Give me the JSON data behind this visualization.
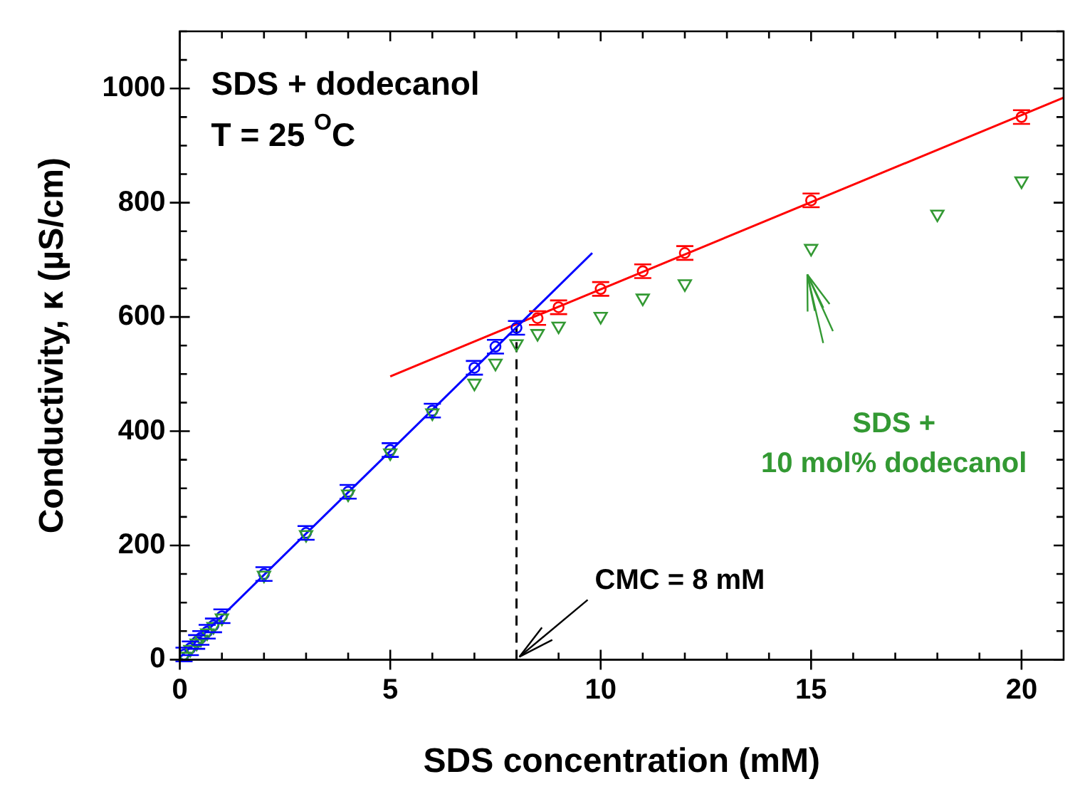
{
  "chart_data": {
    "type": "scatter",
    "xlabel": "SDS concentration (mM)",
    "ylabel": "Conductivity, κ (µS/cm)",
    "xlim": [
      0,
      21
    ],
    "ylim": [
      0,
      1100
    ],
    "xticks": [
      0,
      {
        "value": 1,
        "label": null
      },
      {
        "value": 2,
        "label": null
      },
      {
        "value": 3,
        "label": null
      },
      {
        "value": 4,
        "label": null
      },
      5,
      {
        "value": 6,
        "label": null
      },
      {
        "value": 7,
        "label": null
      },
      {
        "value": 8,
        "label": null
      },
      {
        "value": 9,
        "label": null
      },
      10,
      {
        "value": 11,
        "label": null
      },
      {
        "value": 12,
        "label": null
      },
      {
        "value": 13,
        "label": null
      },
      {
        "value": 14,
        "label": null
      },
      15,
      {
        "value": 16,
        "label": null
      },
      {
        "value": 17,
        "label": null
      },
      {
        "value": 18,
        "label": null
      },
      {
        "value": 19,
        "label": null
      },
      20
    ],
    "yticks": [
      0,
      {
        "value": 50,
        "label": null
      },
      {
        "value": 100,
        "label": null
      },
      {
        "value": 150,
        "label": null
      },
      200,
      {
        "value": 250,
        "label": null
      },
      {
        "value": 300,
        "label": null
      },
      {
        "value": 350,
        "label": null
      },
      400,
      {
        "value": 450,
        "label": null
      },
      {
        "value": 500,
        "label": null
      },
      {
        "value": 550,
        "label": null
      },
      600,
      {
        "value": 650,
        "label": null
      },
      {
        "value": 700,
        "label": null
      },
      {
        "value": 750,
        "label": null
      },
      800,
      {
        "value": 850,
        "label": null
      },
      {
        "value": 900,
        "label": null
      },
      {
        "value": 950,
        "label": null
      },
      1000,
      {
        "value": 1050,
        "label": null
      },
      {
        "value": 1100,
        "label": null
      }
    ],
    "grid": false,
    "legend": false,
    "series": [
      {
        "marker": "triangle",
        "color": "#339933",
        "x": [
          0.1,
          0.25,
          0.4,
          0.5,
          0.65,
          0.8,
          1,
          2,
          3,
          4,
          5,
          6,
          7,
          7.5,
          8,
          8.5,
          9,
          10,
          11,
          12,
          15,
          18,
          20
        ],
        "values": [
          6,
          18,
          29,
          36,
          47,
          58,
          73,
          148,
          219,
          290,
          362,
          432,
          484,
          519,
          553,
          571,
          584,
          601,
          633,
          658,
          720,
          780,
          838
        ]
      },
      {
        "marker": "circle",
        "color": "#0000ff",
        "x": [
          0.1,
          0.25,
          0.4,
          0.5,
          0.65,
          0.8,
          1,
          2,
          3,
          4,
          5,
          6,
          7,
          7.5,
          8
        ],
        "values": [
          9,
          20,
          31,
          38,
          49,
          60,
          76,
          150,
          222,
          294,
          367,
          436,
          511,
          548,
          581
        ],
        "errors": [
          12,
          12,
          12,
          12,
          12,
          12,
          12,
          12,
          12,
          12,
          12,
          12,
          12,
          12,
          12
        ]
      },
      {
        "color": "#ff0000",
        "x": [
          8.5,
          9,
          10,
          11,
          12,
          15,
          20
        ],
        "values": [
          598,
          617,
          649,
          680,
          712,
          804,
          950
        ],
        "errors": [
          12,
          12,
          12,
          12,
          12,
          12,
          12
        ]
      },
      {
        "type": "line",
        "line_style": "solid",
        "color": "#0000ff",
        "x": [
          0,
          9.8
        ],
        "values": [
          4,
          712
        ]
      },
      {
        "type": "line",
        "line_style": "solid",
        "color": "#ff0000",
        "x": [
          5,
          21
        ],
        "values": [
          496,
          984
        ]
      },
      {
        "type": "line",
        "line_style": "dashed",
        "color": "#000000",
        "x": [
          8,
          8
        ],
        "values": [
          0,
          581
        ]
      }
    ],
    "annotations": [
      "SDS + dodecanol",
      "T = 25 $^{O}$C",
      {
        "text": "CMC = 8 mM",
        "x": 8,
        "y": 0
      },
      "SDS +\n10 mol% dodecanol"
    ]
  }
}
